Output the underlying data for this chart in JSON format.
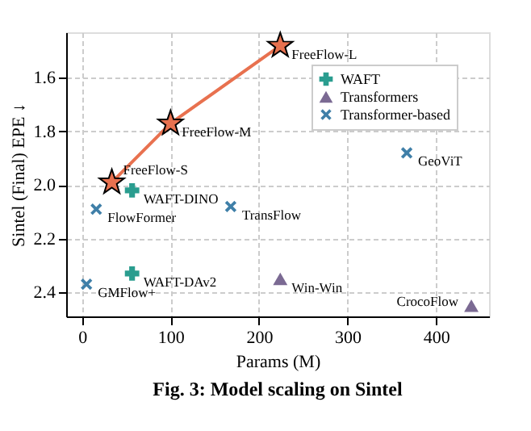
{
  "chart_data": {
    "type": "scatter",
    "xlabel": "Params (M)",
    "ylabel": "Sintel (Final) EPE ↓",
    "xlim": [
      -18,
      460
    ],
    "ylim": [
      2.49,
      1.43
    ],
    "xticks": [
      0,
      100,
      200,
      300,
      400
    ],
    "yticks": [
      1.6,
      1.8,
      {
        "value": 2,
        "label": "2.0"
      },
      2.2,
      2.4
    ],
    "grid": true,
    "legend": "top right",
    "series": [
      {
        "type": "line",
        "color": "#e8714f",
        "marker": "star",
        "x": [
          33.6,
          100,
          224
        ],
        "values": [
          1.99,
          1.77,
          1.48
        ]
      },
      {
        "name": "WAFT",
        "color": "#2a9d8f",
        "marker": "cross",
        "x": [
          56.5,
          56.5
        ],
        "values": [
          2.02,
          2.33
        ]
      },
      {
        "name": "Transformers",
        "color": "#7b6a93",
        "marker": "triangle",
        "x": [
          224,
          440
        ],
        "values": [
          2.35,
          2.45
        ]
      },
      {
        "name": "Transformer-based",
        "color": "#3f7fa8",
        "marker": "x",
        "x": [
          16,
          168,
          5,
          367
        ],
        "values": [
          2.09,
          2.08,
          2.37,
          1.88
        ]
      }
    ],
    "annotations": [
      {
        "text": "FreeFlow-S",
        "x": 33.6,
        "y": 1.99
      },
      {
        "text": "FreeFlow-M",
        "x": 100,
        "y": 1.77
      },
      {
        "text": "FreeFlow-L",
        "x": 224,
        "y": 1.48
      },
      {
        "text": "WAFT-DINO",
        "x": 56.5,
        "y": 2.02
      },
      {
        "text": "WAFT-DAv2",
        "x": 56.5,
        "y": 2.33
      },
      {
        "text": "Win-Win",
        "x": 224,
        "y": 2.35
      },
      {
        "text": "CrocoFlow",
        "x": 440,
        "y": 2.45
      },
      {
        "text": "FlowFormer",
        "x": 16,
        "y": 2.09
      },
      {
        "text": "TransFlow",
        "x": 168,
        "y": 2.08
      },
      {
        "text": "GMFlow+",
        "x": 5,
        "y": 2.37
      },
      {
        "text": "GeoViT",
        "x": 367,
        "y": 1.88
      },
      "Fig. 3: Model scaling on Sintel"
    ]
  }
}
